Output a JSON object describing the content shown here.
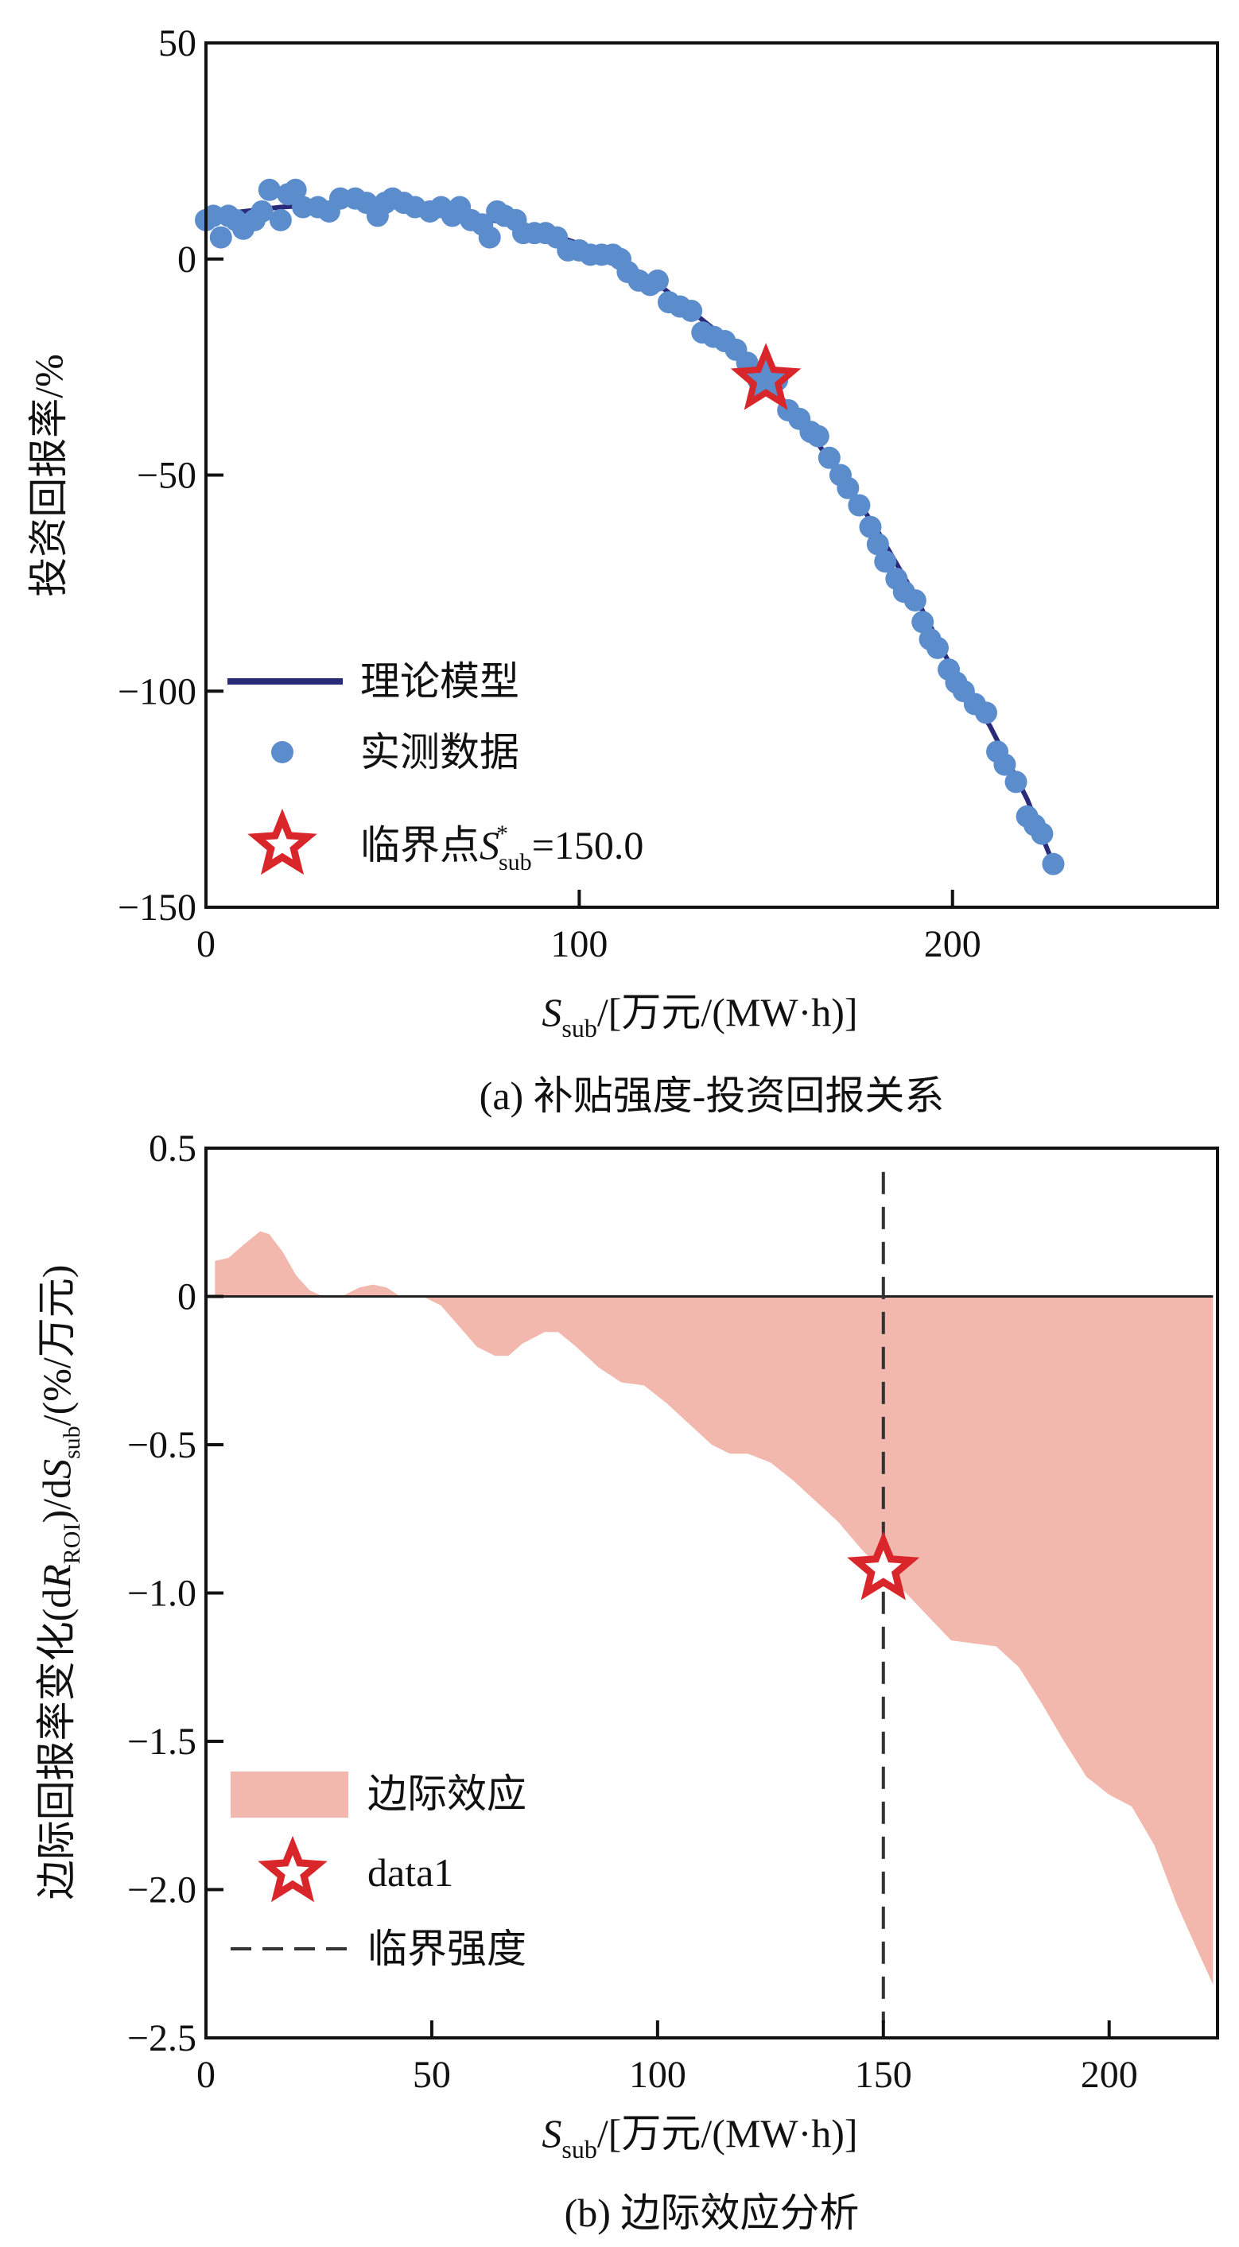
{
  "colors": {
    "model_line": "#2a2a7a",
    "scatter": "#5b8ccc",
    "star": "#d9262a",
    "area": "#f2b8ae",
    "axis": "#111111"
  },
  "chart_data": [
    {
      "type": "scatter",
      "caption": "(a) 补贴强度-投资回报关系",
      "xlabel": {
        "main": "S",
        "sub": "sub",
        "rest": "/[万元/(MW·h)]"
      },
      "ylabel": "投资回报率/%",
      "xlim": [
        0,
        271
      ],
      "ylim": [
        -150,
        50
      ],
      "xticks": [
        "0",
        "100",
        "200"
      ],
      "xtick_values": [
        0,
        100,
        200
      ],
      "yticks": [
        "50",
        "0",
        "−50",
        "−100",
        "−150"
      ],
      "ytick_values": [
        50,
        0,
        -50,
        -100,
        -150
      ],
      "legend": {
        "position": "lower-left",
        "entries": [
          {
            "label": "理论模型"
          },
          {
            "label": "实测数据"
          },
          {
            "label_main": "临界点",
            "label_s": "S",
            "label_sup": "*",
            "label_sub": "sub",
            "label_rest": "=150.0"
          }
        ]
      },
      "model_line": {
        "x": [
          0,
          10,
          20,
          30,
          40,
          50,
          60,
          70,
          80,
          90,
          100,
          110,
          120,
          130,
          140,
          150,
          160,
          170,
          180,
          190,
          200,
          210,
          220,
          227
        ],
        "y": [
          10,
          11,
          12,
          12.5,
          13,
          12.5,
          11.5,
          10,
          8.5,
          6.5,
          3.5,
          0,
          -5,
          -12,
          -19,
          -28,
          -38,
          -50,
          -63,
          -78,
          -95,
          -108,
          -125,
          -140
        ]
      },
      "scatter": {
        "x": [
          0,
          2,
          4,
          6,
          8,
          10,
          13,
          15,
          17,
          20,
          22,
          24,
          26,
          30,
          33,
          36,
          40,
          43,
          46,
          48,
          50,
          53,
          56,
          60,
          63,
          66,
          68,
          71,
          74,
          76,
          78,
          80,
          83,
          85,
          88,
          91,
          94,
          97,
          100,
          103,
          106,
          109,
          111,
          113,
          116,
          119,
          121,
          124,
          127,
          130,
          133,
          136,
          139,
          142,
          145,
          148,
          150,
          153,
          156,
          159,
          162,
          164,
          167,
          170,
          172,
          175,
          178,
          180,
          182,
          185,
          187,
          190,
          192,
          194,
          196,
          199,
          201,
          203,
          206,
          209,
          212,
          214,
          217,
          220,
          222,
          224,
          227
        ],
        "y": [
          9,
          10,
          5,
          10,
          9,
          7,
          9,
          11,
          16,
          9,
          15,
          16,
          12,
          12,
          11,
          14,
          14,
          13,
          10,
          13,
          14,
          13,
          12,
          11,
          12,
          10,
          12,
          9,
          8,
          5,
          11,
          10,
          9,
          6,
          6,
          6,
          5,
          2,
          2,
          1,
          1,
          1,
          0,
          -3,
          -5,
          -6,
          -5,
          -10,
          -11,
          -12,
          -17,
          -18,
          -19,
          -21,
          -24,
          -28,
          -29,
          -28,
          -35,
          -37,
          -40,
          -41,
          -46,
          -50,
          -53,
          -57,
          -62,
          -66,
          -70,
          -74,
          -77,
          -79,
          -84,
          -88,
          -90,
          -95,
          -98,
          -100,
          -103,
          -105,
          -114,
          -117,
          -121,
          -129,
          -131,
          -133,
          -140
        ]
      },
      "critical_point": {
        "x": 150,
        "y": -28
      }
    },
    {
      "type": "area",
      "caption": "(b) 边际效应分析",
      "xlabel": {
        "main": "S",
        "sub": "sub",
        "rest": "/[万元/(MW·h)]"
      },
      "ylabel": {
        "p1": "边际回报率变化(d",
        "p2": "R",
        "p3": "ROI",
        "p4": ")/d",
        "p5": "S",
        "p6": "sub",
        "p7": "/(%/万元)"
      },
      "xlim": [
        0,
        224
      ],
      "ylim": [
        -2.5,
        0.5
      ],
      "xticks": [
        "0",
        "50",
        "100",
        "150",
        "200"
      ],
      "xtick_values": [
        0,
        50,
        100,
        150,
        200
      ],
      "yticks": [
        "0.5",
        "0",
        "−0.5",
        "−1.0",
        "−1.5",
        "−2.0",
        "−2.5"
      ],
      "ytick_values": [
        0.5,
        0,
        -0.5,
        -1.0,
        -1.5,
        -2.0,
        -2.5
      ],
      "legend": {
        "position": "lower-left",
        "entries": [
          {
            "label": "边际效应"
          },
          {
            "label": "data1"
          },
          {
            "label": "临界强度"
          }
        ]
      },
      "series": {
        "name": "边际效应",
        "x": [
          2,
          5,
          8,
          12,
          14,
          17,
          20,
          23,
          26,
          30,
          34,
          37,
          40,
          43,
          48,
          52,
          56,
          60,
          64,
          67,
          70,
          75,
          78,
          82,
          87,
          92,
          97,
          102,
          107,
          112,
          116,
          120,
          125,
          130,
          135,
          140,
          145,
          150,
          155,
          160,
          165,
          170,
          175,
          180,
          185,
          190,
          195,
          200,
          205,
          210,
          215,
          220,
          223
        ],
        "y": [
          0.12,
          0.13,
          0.17,
          0.22,
          0.21,
          0.15,
          0.07,
          0.02,
          0,
          0,
          0.03,
          0.04,
          0.03,
          0,
          0,
          -0.03,
          -0.1,
          -0.17,
          -0.2,
          -0.2,
          -0.16,
          -0.12,
          -0.12,
          -0.17,
          -0.24,
          -0.29,
          -0.3,
          -0.36,
          -0.43,
          -0.5,
          -0.53,
          -0.53,
          -0.56,
          -0.62,
          -0.69,
          -0.76,
          -0.85,
          -0.93,
          -1.0,
          -1.08,
          -1.16,
          -1.17,
          -1.18,
          -1.25,
          -1.37,
          -1.5,
          -1.62,
          -1.68,
          -1.72,
          -1.85,
          -2.05,
          -2.22,
          -2.32
        ]
      },
      "data1": {
        "x": 150,
        "y": -0.92
      },
      "critical_line": {
        "x": 150,
        "y_range": [
          -2.45,
          0.42
        ]
      }
    }
  ]
}
